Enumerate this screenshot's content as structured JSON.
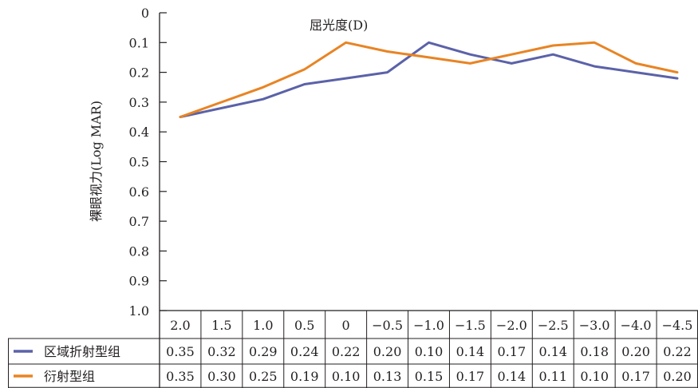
{
  "chart_data": {
    "type": "line",
    "title": "屈光度(D)",
    "xlabel": "屈光度(D)",
    "ylabel": "裸眼视力(Log MAR)",
    "x": [
      "2.0",
      "1.5",
      "1.0",
      "0.5",
      "0",
      "−0.5",
      "−1.0",
      "−1.5",
      "−2.0",
      "−2.5",
      "−3.0",
      "−4.0",
      "−4.5"
    ],
    "x_values": [
      2.0,
      1.5,
      1.0,
      0.5,
      0,
      -0.5,
      -1.0,
      -1.5,
      -2.0,
      -2.5,
      -3.0,
      -4.0,
      -4.5
    ],
    "ylim": [
      0,
      1.0
    ],
    "y_inverted": true,
    "yticks": [
      "0",
      "0.1",
      "0.2",
      "0.3",
      "0.4",
      "0.5",
      "0.6",
      "0.7",
      "0.8",
      "0.9",
      "1.0"
    ],
    "ytick_values": [
      0,
      0.1,
      0.2,
      0.3,
      0.4,
      0.5,
      0.6,
      0.7,
      0.8,
      0.9,
      1.0
    ],
    "grid": false,
    "legend": "table-left",
    "series": [
      {
        "name": "区域折射型组",
        "color": "#5b62a8",
        "values": [
          0.35,
          0.32,
          0.29,
          0.24,
          0.22,
          0.2,
          0.1,
          0.14,
          0.17,
          0.14,
          0.18,
          0.2,
          0.22
        ],
        "labels": [
          "0.35",
          "0.32",
          "0.29",
          "0.24",
          "0.22",
          "0.20",
          "0.10",
          "0.14",
          "0.17",
          "0.14",
          "0.18",
          "0.20",
          "0.22"
        ]
      },
      {
        "name": "衍射型组",
        "color": "#e88424",
        "values": [
          0.35,
          0.3,
          0.25,
          0.19,
          0.1,
          0.13,
          0.15,
          0.17,
          0.14,
          0.11,
          0.1,
          0.17,
          0.2
        ],
        "labels": [
          "0.35",
          "0.30",
          "0.25",
          "0.19",
          "0.10",
          "0.13",
          "0.15",
          "0.17",
          "0.14",
          "0.11",
          "0.10",
          "0.17",
          "0.20"
        ]
      }
    ]
  }
}
